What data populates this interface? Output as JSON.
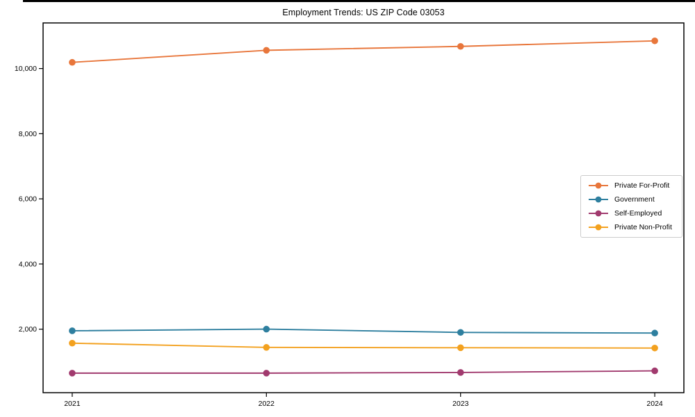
{
  "figure": {
    "background": "#ffffff",
    "top_edge_line_color": "#000000",
    "axis_color": "#000000"
  },
  "chart_data": {
    "type": "line",
    "title": "Employment Trends: US ZIP Code 03053",
    "xlabel": "",
    "ylabel": "",
    "x": [
      2021,
      2022,
      2023,
      2024
    ],
    "xtick_labels": [
      "2021",
      "2022",
      "2023",
      "2024"
    ],
    "yticks": [
      {
        "value": 2000,
        "label": "2,000"
      },
      {
        "value": 4000,
        "label": "4,000"
      },
      {
        "value": 6000,
        "label": "6,000"
      },
      {
        "value": 8000,
        "label": "8,000"
      },
      {
        "value": 10000,
        "label": "10,000"
      }
    ],
    "xlim": [
      2020.85,
      2024.15
    ],
    "ylim": [
      50,
      11400
    ],
    "grid": false,
    "legend_position": "center-right",
    "legend_border_color": "#cccccc",
    "series": [
      {
        "name": "Private For-Profit",
        "color": "#E8763B",
        "values": [
          10190,
          10560,
          10680,
          10850
        ]
      },
      {
        "name": "Government",
        "color": "#2E7F9F",
        "values": [
          1950,
          2000,
          1900,
          1880
        ]
      },
      {
        "name": "Self-Employed",
        "color": "#A13A6E",
        "values": [
          650,
          650,
          670,
          720
        ]
      },
      {
        "name": "Private Non-Profit",
        "color": "#F3A11F",
        "values": [
          1570,
          1440,
          1430,
          1420
        ]
      }
    ]
  }
}
